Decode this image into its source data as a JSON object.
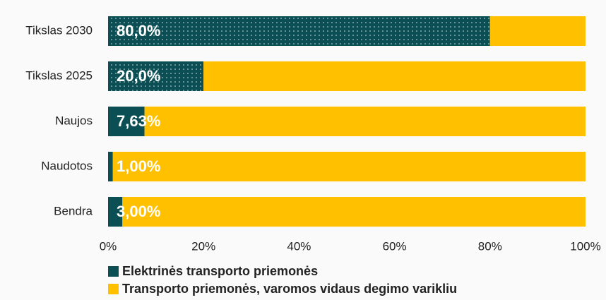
{
  "chart_data": {
    "type": "stacked_barh",
    "categories": [
      "Tikslas 2030",
      "Tikslas 2025",
      "Naujos",
      "Naudotos",
      "Bendra"
    ],
    "series": [
      {
        "name": "Elektrinės transporto priemonės",
        "color": "#0b4f55",
        "values": [
          80,
          20,
          7.63,
          1,
          3
        ],
        "value_labels": [
          "80,0%",
          "20,0%",
          "7,63%",
          "1,00%",
          "3,00%"
        ],
        "dotted": [
          true,
          true,
          false,
          false,
          false
        ]
      },
      {
        "name": "Transporto priemonės, varomos vidaus degimo varikliu",
        "color": "#ffc000",
        "values": [
          20,
          80,
          92.37,
          99,
          97
        ]
      }
    ],
    "xlim": [
      0,
      100
    ],
    "xticks": [
      {
        "value": 0,
        "label": "0%"
      },
      {
        "value": 20,
        "label": "20%"
      },
      {
        "value": 40,
        "label": "40%"
      },
      {
        "value": 60,
        "label": "60%"
      },
      {
        "value": 80,
        "label": "80%"
      },
      {
        "value": 100,
        "label": "100%"
      }
    ],
    "legend": "bottom"
  }
}
